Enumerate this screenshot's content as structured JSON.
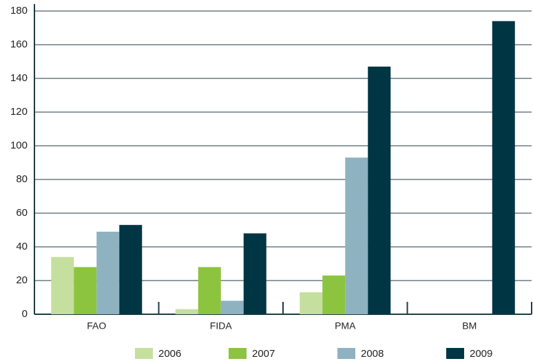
{
  "chart_data": {
    "type": "bar",
    "categories": [
      "FAO",
      "FIDA",
      "PMA",
      "BM"
    ],
    "series": [
      {
        "name": "2006",
        "color": "#c5df9f",
        "values": [
          34,
          3,
          13,
          0
        ]
      },
      {
        "name": "2007",
        "color": "#8cc43f",
        "values": [
          28,
          28,
          23,
          0
        ]
      },
      {
        "name": "2008",
        "color": "#8fb2c0",
        "values": [
          49,
          8,
          93,
          0
        ]
      },
      {
        "name": "2009",
        "color": "#003543",
        "values": [
          53,
          48,
          147,
          174
        ]
      }
    ],
    "ylim": [
      0,
      180
    ],
    "yticks": [
      0,
      20,
      40,
      60,
      80,
      100,
      120,
      140,
      160,
      180
    ],
    "grid": true,
    "legend": "bottom"
  }
}
